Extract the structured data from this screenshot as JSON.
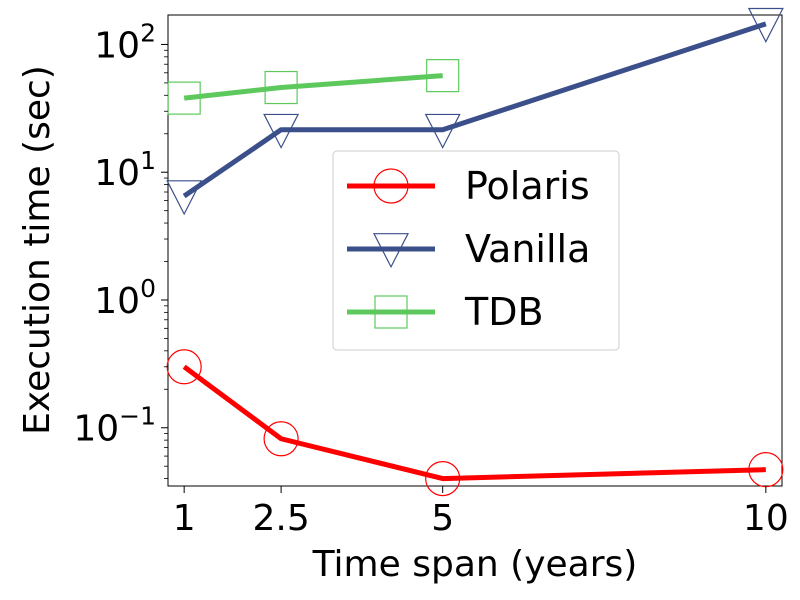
{
  "chart_data": {
    "type": "line",
    "title": "",
    "xlabel": "Time span (years)",
    "ylabel": "Execution time (sec)",
    "x": [
      1,
      2.5,
      5,
      10
    ],
    "x_tick_labels": [
      "1",
      "2.5",
      "5",
      "10"
    ],
    "xlim": [
      0.75,
      10.25
    ],
    "y_scale": "log",
    "ylim": [
      0.035,
      170
    ],
    "y_ticks": [
      {
        "base": "10",
        "exp": "−1",
        "value": 0.1
      },
      {
        "base": "10",
        "exp": "0",
        "value": 1
      },
      {
        "base": "10",
        "exp": "1",
        "value": 10
      },
      {
        "base": "10",
        "exp": "2",
        "value": 100
      }
    ],
    "grid": false,
    "legend_position": "center",
    "series": [
      {
        "name": "Polaris",
        "color": "#ff0000",
        "marker": "circle",
        "x": [
          1,
          2.5,
          5,
          10
        ],
        "values": [
          0.3,
          0.082,
          0.04,
          0.047
        ]
      },
      {
        "name": "Vanilla",
        "color": "#3b4f8a",
        "marker": "triangle-down",
        "x": [
          1,
          2.5,
          5,
          10
        ],
        "values": [
          6.5,
          21.5,
          21.5,
          145
        ]
      },
      {
        "name": "TDB",
        "color": "#5dc95d",
        "marker": "square",
        "x": [
          1,
          2.5,
          5
        ],
        "values": [
          38,
          46,
          57
        ]
      }
    ]
  }
}
